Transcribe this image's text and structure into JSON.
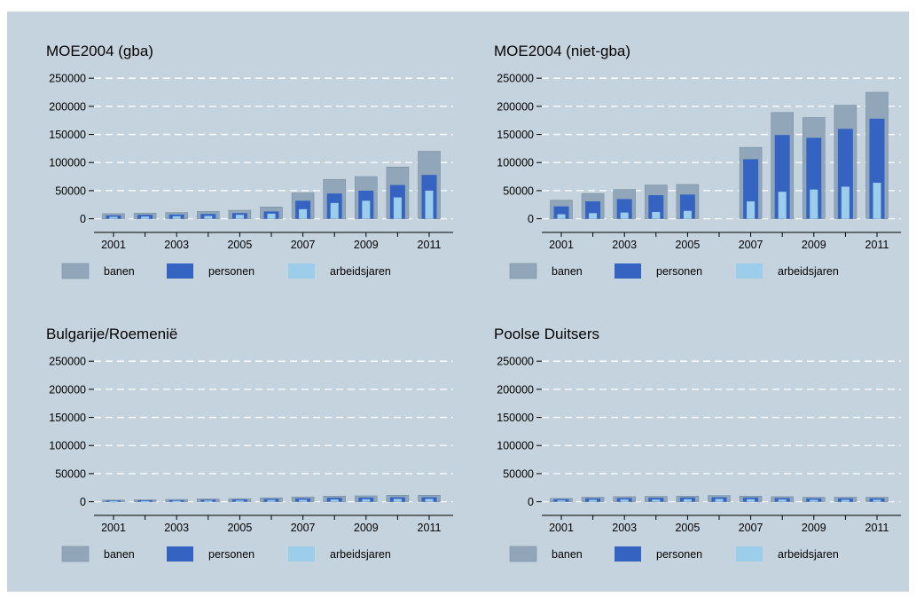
{
  "colors": {
    "background": "#c5d3df",
    "gridline": "#ffffff",
    "banen": "#91a7b9",
    "banen_edge": "#7a90a3",
    "personen": "#3563c2",
    "arbeidsjaren": "#9ccdeb",
    "axis": "#000000"
  },
  "legend": [
    "banen",
    "personen",
    "arbeidsjaren"
  ],
  "chart_data": [
    {
      "type": "bar",
      "title": "MOE2004 (gba)",
      "xlabel": "",
      "ylabel": "",
      "categories": [
        "2001",
        "2002",
        "2003",
        "2004",
        "2005",
        "2006",
        "2007",
        "2008",
        "2009",
        "2010",
        "2011"
      ],
      "xticks": [
        "2001",
        "2003",
        "2005",
        "2007",
        "2009",
        "2011"
      ],
      "yticks": [
        0,
        50000,
        100000,
        150000,
        200000,
        250000
      ],
      "ylim": [
        -18000,
        255000
      ],
      "grid": true,
      "legend_position": "bottom",
      "series": [
        {
          "name": "banen",
          "values": [
            9000,
            10000,
            11000,
            13000,
            15000,
            21000,
            46000,
            70000,
            75000,
            92000,
            120000
          ]
        },
        {
          "name": "personen",
          "values": [
            6000,
            7000,
            7500,
            8500,
            10000,
            13000,
            32000,
            45000,
            50000,
            60000,
            78000
          ]
        },
        {
          "name": "arbeidsjaren",
          "values": [
            3500,
            4000,
            4500,
            5000,
            7000,
            9000,
            17000,
            28000,
            32000,
            38000,
            50000
          ]
        }
      ]
    },
    {
      "type": "bar",
      "title": "MOE2004 (niet-gba)",
      "xlabel": "",
      "ylabel": "",
      "categories": [
        "2001",
        "2002",
        "2003",
        "2004",
        "2005",
        "2006",
        "2007",
        "2008",
        "2009",
        "2010",
        "2011"
      ],
      "xticks": [
        "2001",
        "2003",
        "2005",
        "2007",
        "2009",
        "2011"
      ],
      "yticks": [
        0,
        50000,
        100000,
        150000,
        200000,
        250000
      ],
      "ylim": [
        -18000,
        255000
      ],
      "grid": true,
      "legend_position": "bottom",
      "series": [
        {
          "name": "banen",
          "values": [
            33000,
            45000,
            52000,
            60000,
            61000,
            null,
            127000,
            189000,
            180000,
            202000,
            225000
          ]
        },
        {
          "name": "personen",
          "values": [
            22000,
            31000,
            35000,
            42000,
            43000,
            null,
            106000,
            149000,
            144000,
            160000,
            178000
          ]
        },
        {
          "name": "arbeidsjaren",
          "values": [
            8000,
            10000,
            11000,
            12000,
            14000,
            null,
            31000,
            48000,
            52000,
            57000,
            64000
          ]
        }
      ]
    },
    {
      "type": "bar",
      "title": "Bulgarije/Roemenië",
      "xlabel": "",
      "ylabel": "",
      "categories": [
        "2001",
        "2002",
        "2003",
        "2004",
        "2005",
        "2006",
        "2007",
        "2008",
        "2009",
        "2010",
        "2011"
      ],
      "xticks": [
        "2001",
        "2003",
        "2005",
        "2007",
        "2009",
        "2011"
      ],
      "yticks": [
        0,
        50000,
        100000,
        150000,
        200000,
        250000
      ],
      "ylim": [
        -18000,
        255000
      ],
      "grid": true,
      "legend_position": "bottom",
      "series": [
        {
          "name": "banen",
          "values": [
            3000,
            3500,
            4000,
            5000,
            5500,
            7000,
            8500,
            10000,
            10500,
            11500,
            11500
          ]
        },
        {
          "name": "personen",
          "values": [
            2000,
            2500,
            2800,
            3500,
            4000,
            5000,
            6000,
            7000,
            7500,
            8000,
            8000
          ]
        },
        {
          "name": "arbeidsjaren",
          "values": [
            1000,
            1200,
            1500,
            2000,
            2200,
            3000,
            3500,
            4000,
            4500,
            5000,
            5000
          ]
        }
      ]
    },
    {
      "type": "bar",
      "title": "Poolse Duitsers",
      "xlabel": "",
      "ylabel": "",
      "categories": [
        "2001",
        "2002",
        "2003",
        "2004",
        "2005",
        "2006",
        "2007",
        "2008",
        "2009",
        "2010",
        "2011"
      ],
      "xticks": [
        "2001",
        "2003",
        "2005",
        "2007",
        "2009",
        "2011"
      ],
      "yticks": [
        0,
        50000,
        100000,
        150000,
        200000,
        250000
      ],
      "ylim": [
        -18000,
        255000
      ],
      "grid": true,
      "legend_position": "bottom",
      "series": [
        {
          "name": "banen",
          "values": [
            6000,
            8000,
            9000,
            9500,
            10000,
            11000,
            10000,
            9000,
            8000,
            8000,
            8000
          ]
        },
        {
          "name": "personen",
          "values": [
            4500,
            6000,
            6500,
            7000,
            7500,
            8000,
            7500,
            6500,
            6000,
            6000,
            6000
          ]
        },
        {
          "name": "arbeidsjaren",
          "values": [
            2500,
            3500,
            4000,
            4000,
            4500,
            5000,
            4500,
            4000,
            3500,
            3500,
            3500
          ]
        }
      ]
    }
  ]
}
